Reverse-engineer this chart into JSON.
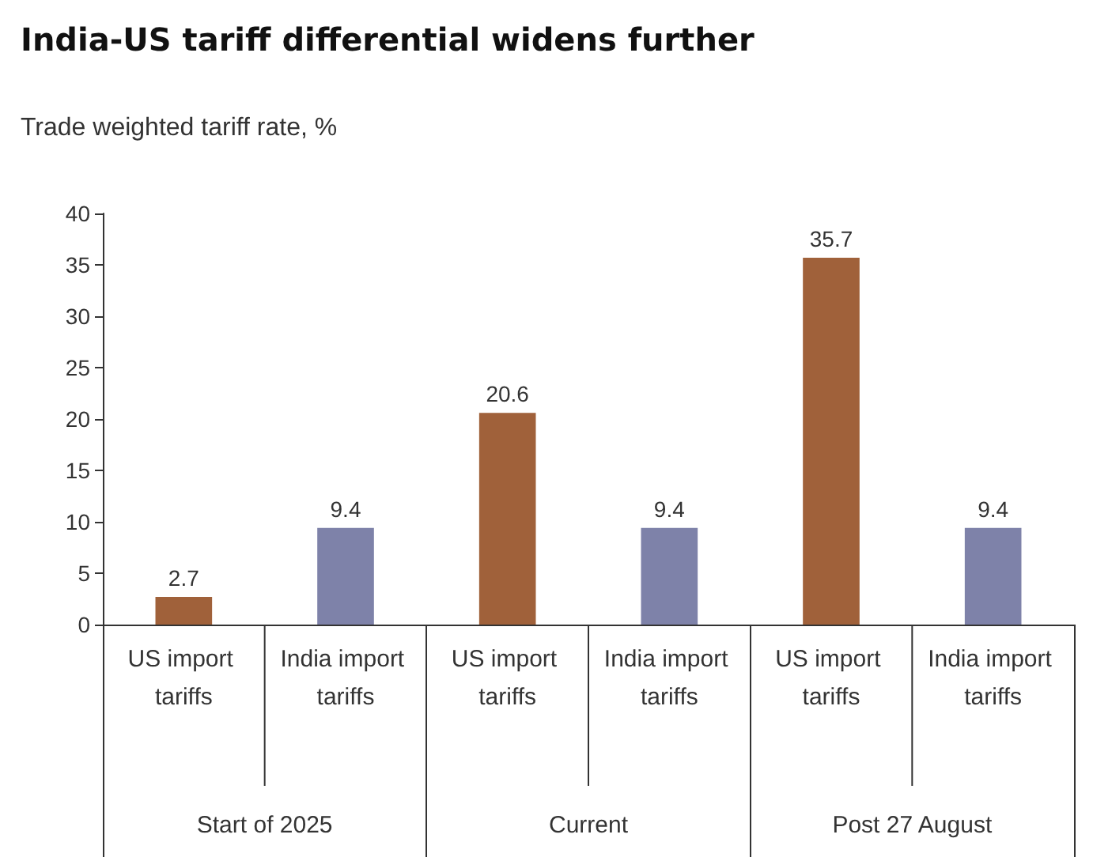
{
  "chart_data": {
    "type": "bar",
    "title": "India-US tariff differential widens further",
    "ylabel": "Trade weighted tariff rate, %",
    "categories": [
      "US import tariffs",
      "India import tariffs",
      "US import tariffs",
      "India import tariffs",
      "US import tariffs",
      "India import tariffs"
    ],
    "values": [
      2.7,
      9.4,
      20.6,
      9.4,
      35.7,
      9.4
    ],
    "colors": [
      "#a0613a",
      "#7e82a9",
      "#a0613a",
      "#7e82a9",
      "#a0613a",
      "#7e82a9"
    ],
    "ylim": [
      0,
      40
    ],
    "yticks": [
      0,
      5,
      10,
      15,
      20,
      25,
      30,
      35,
      40
    ],
    "grid": false,
    "data_labels": true,
    "annotations": [
      "Start of 2025",
      "Current",
      "Post 27 August"
    ]
  }
}
